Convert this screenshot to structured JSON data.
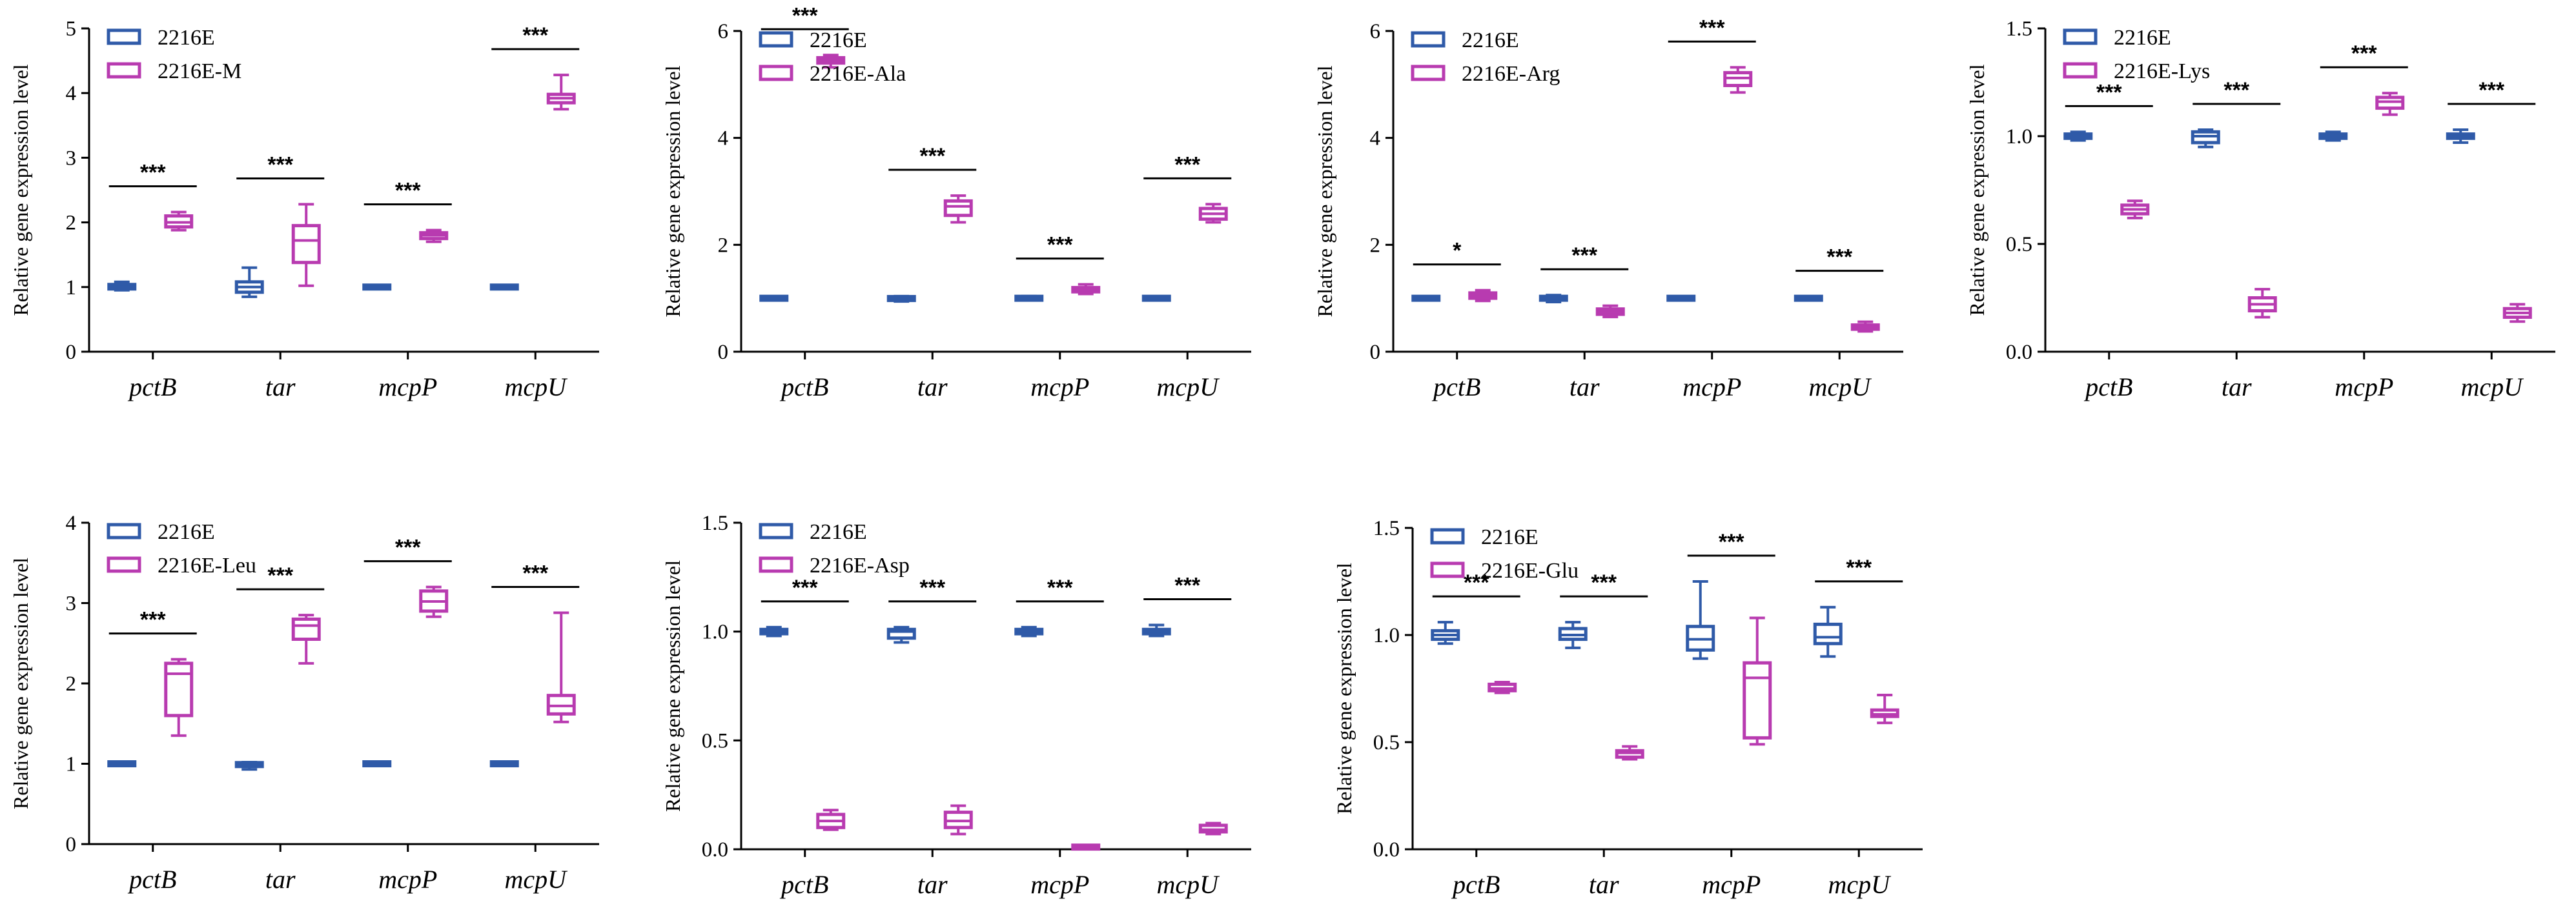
{
  "y_axis_label": "Relative gene expression level",
  "categories": [
    "pctB",
    "tar",
    "mcpP",
    "mcpU"
  ],
  "colors": {
    "control": "#2f5aa8",
    "treatment": "#b83bb0"
  },
  "chart_data": [
    {
      "type": "box",
      "title": "",
      "xlabel": "",
      "ylabel": "Relative gene expression level",
      "categories": [
        "pctB",
        "tar",
        "mcpP",
        "mcpU"
      ],
      "ylim": [
        0,
        5
      ],
      "yticks": [
        "0",
        "1",
        "2",
        "3",
        "4",
        "5"
      ],
      "ytick_values": [
        0,
        1,
        2,
        3,
        4,
        5
      ],
      "legend": [
        "2216E",
        "2216E-M"
      ],
      "significance": [
        "***",
        "***",
        "***",
        "***"
      ],
      "series": [
        {
          "name": "2216E",
          "boxes": [
            {
              "min": 0.95,
              "q1": 0.97,
              "median": 1.0,
              "q3": 1.04,
              "max": 1.08
            },
            {
              "min": 0.85,
              "q1": 0.92,
              "median": 1.0,
              "q3": 1.08,
              "max": 1.3
            },
            {
              "min": 0.99,
              "q1": 0.995,
              "median": 1.0,
              "q3": 1.005,
              "max": 1.01
            },
            {
              "min": 0.99,
              "q1": 0.995,
              "median": 1.0,
              "q3": 1.005,
              "max": 1.01
            }
          ]
        },
        {
          "name": "2216E-M",
          "boxes": [
            {
              "min": 1.88,
              "q1": 1.93,
              "median": 2.0,
              "q3": 2.1,
              "max": 2.16
            },
            {
              "min": 1.02,
              "q1": 1.38,
              "median": 1.72,
              "q3": 1.95,
              "max": 2.28
            },
            {
              "min": 1.7,
              "q1": 1.75,
              "median": 1.8,
              "q3": 1.84,
              "max": 1.88
            },
            {
              "min": 3.75,
              "q1": 3.85,
              "median": 3.92,
              "q3": 3.98,
              "max": 4.28
            }
          ]
        }
      ]
    },
    {
      "type": "box",
      "title": "",
      "xlabel": "",
      "ylabel": "Relative gene expression level",
      "categories": [
        "pctB",
        "tar",
        "mcpP",
        "mcpU"
      ],
      "ylim": [
        0,
        6
      ],
      "yticks": [
        "0",
        "2",
        "4",
        "6"
      ],
      "ytick_values": [
        0,
        2,
        4,
        6
      ],
      "legend": [
        "2216E",
        "2216E-Ala"
      ],
      "significance": [
        "***",
        "***",
        "***",
        "***"
      ],
      "series": [
        {
          "name": "2216E",
          "boxes": [
            {
              "min": 0.99,
              "q1": 0.995,
              "median": 1.0,
              "q3": 1.005,
              "max": 1.01
            },
            {
              "min": 0.94,
              "q1": 0.97,
              "median": 1.0,
              "q3": 1.02,
              "max": 1.04
            },
            {
              "min": 0.96,
              "q1": 0.98,
              "median": 1.0,
              "q3": 1.02,
              "max": 1.04
            },
            {
              "min": 0.99,
              "q1": 0.995,
              "median": 1.0,
              "q3": 1.005,
              "max": 1.01
            }
          ]
        },
        {
          "name": "2216E-Ala",
          "boxes": [
            {
              "min": 5.32,
              "q1": 5.4,
              "median": 5.45,
              "q3": 5.5,
              "max": 5.55
            },
            {
              "min": 2.42,
              "q1": 2.55,
              "median": 2.72,
              "q3": 2.82,
              "max": 2.92
            },
            {
              "min": 1.08,
              "q1": 1.12,
              "median": 1.15,
              "q3": 1.2,
              "max": 1.26
            },
            {
              "min": 2.42,
              "q1": 2.48,
              "median": 2.58,
              "q3": 2.68,
              "max": 2.76
            }
          ]
        }
      ]
    },
    {
      "type": "box",
      "title": "",
      "xlabel": "",
      "ylabel": "Relative gene expression level",
      "categories": [
        "pctB",
        "tar",
        "mcpP",
        "mcpU"
      ],
      "ylim": [
        0,
        6
      ],
      "yticks": [
        "0",
        "2",
        "4",
        "6"
      ],
      "ytick_values": [
        0,
        2,
        4,
        6
      ],
      "legend": [
        "2216E",
        "2216E-Arg"
      ],
      "significance": [
        "*",
        "***",
        "***",
        "***"
      ],
      "series": [
        {
          "name": "2216E",
          "boxes": [
            {
              "min": 0.99,
              "q1": 0.995,
              "median": 1.0,
              "q3": 1.005,
              "max": 1.01
            },
            {
              "min": 0.93,
              "q1": 0.97,
              "median": 1.0,
              "q3": 1.03,
              "max": 1.06
            },
            {
              "min": 0.99,
              "q1": 0.995,
              "median": 1.0,
              "q3": 1.005,
              "max": 1.01
            },
            {
              "min": 0.97,
              "q1": 0.985,
              "median": 1.0,
              "q3": 1.015,
              "max": 1.03
            }
          ]
        },
        {
          "name": "2216E-Arg",
          "boxes": [
            {
              "min": 0.95,
              "q1": 1.0,
              "median": 1.05,
              "q3": 1.1,
              "max": 1.15
            },
            {
              "min": 0.65,
              "q1": 0.7,
              "median": 0.75,
              "q3": 0.8,
              "max": 0.86
            },
            {
              "min": 4.85,
              "q1": 4.98,
              "median": 5.12,
              "q3": 5.22,
              "max": 5.32
            },
            {
              "min": 0.38,
              "q1": 0.42,
              "median": 0.46,
              "q3": 0.5,
              "max": 0.56
            }
          ]
        }
      ]
    },
    {
      "type": "box",
      "title": "",
      "xlabel": "",
      "ylabel": "Relative gene expression level",
      "categories": [
        "pctB",
        "tar",
        "mcpP",
        "mcpU"
      ],
      "ylim": [
        0,
        1.5
      ],
      "yticks": [
        "0.0",
        "0.5",
        "1.0",
        "1.5"
      ],
      "ytick_values": [
        0,
        0.5,
        1.0,
        1.5
      ],
      "legend": [
        "2216E",
        "2216E-Lys"
      ],
      "significance": [
        "***",
        "***",
        "***",
        "***"
      ],
      "series": [
        {
          "name": "2216E",
          "boxes": [
            {
              "min": 0.98,
              "q1": 0.99,
              "median": 1.0,
              "q3": 1.01,
              "max": 1.02
            },
            {
              "min": 0.95,
              "q1": 0.97,
              "median": 1.0,
              "q3": 1.02,
              "max": 1.03
            },
            {
              "min": 0.98,
              "q1": 0.99,
              "median": 1.0,
              "q3": 1.01,
              "max": 1.02
            },
            {
              "min": 0.97,
              "q1": 0.99,
              "median": 1.0,
              "q3": 1.01,
              "max": 1.03
            }
          ]
        },
        {
          "name": "2216E-Lys",
          "boxes": [
            {
              "min": 0.62,
              "q1": 0.64,
              "median": 0.66,
              "q3": 0.68,
              "max": 0.7
            },
            {
              "min": 0.16,
              "q1": 0.19,
              "median": 0.22,
              "q3": 0.25,
              "max": 0.29
            },
            {
              "min": 1.1,
              "q1": 1.13,
              "median": 1.16,
              "q3": 1.18,
              "max": 1.2
            },
            {
              "min": 0.14,
              "q1": 0.16,
              "median": 0.18,
              "q3": 0.2,
              "max": 0.22
            }
          ]
        }
      ]
    },
    {
      "type": "box",
      "title": "",
      "xlabel": "",
      "ylabel": "Relative gene expression level",
      "categories": [
        "pctB",
        "tar",
        "mcpP",
        "mcpU"
      ],
      "ylim": [
        0,
        4
      ],
      "yticks": [
        "0",
        "1",
        "2",
        "3",
        "4"
      ],
      "ytick_values": [
        0,
        1,
        2,
        3,
        4
      ],
      "legend": [
        "2216E",
        "2216E-Leu"
      ],
      "significance": [
        "***",
        "***",
        "***",
        "***"
      ],
      "series": [
        {
          "name": "2216E",
          "boxes": [
            {
              "min": 0.99,
              "q1": 0.995,
              "median": 1.0,
              "q3": 1.005,
              "max": 1.01
            },
            {
              "min": 0.93,
              "q1": 0.97,
              "median": 1.0,
              "q3": 1.01,
              "max": 1.02
            },
            {
              "min": 0.99,
              "q1": 0.995,
              "median": 1.0,
              "q3": 1.005,
              "max": 1.01
            },
            {
              "min": 0.99,
              "q1": 0.995,
              "median": 1.0,
              "q3": 1.005,
              "max": 1.01
            }
          ]
        },
        {
          "name": "2216E-Leu",
          "boxes": [
            {
              "min": 1.35,
              "q1": 1.6,
              "median": 2.12,
              "q3": 2.25,
              "max": 2.3
            },
            {
              "min": 2.25,
              "q1": 2.55,
              "median": 2.72,
              "q3": 2.8,
              "max": 2.85
            },
            {
              "min": 2.83,
              "q1": 2.9,
              "median": 3.02,
              "q3": 3.15,
              "max": 3.2
            },
            {
              "min": 1.52,
              "q1": 1.62,
              "median": 1.72,
              "q3": 1.85,
              "max": 2.88
            }
          ]
        }
      ]
    },
    {
      "type": "box",
      "title": "",
      "xlabel": "",
      "ylabel": "Relative gene expression level",
      "categories": [
        "pctB",
        "tar",
        "mcpP",
        "mcpU"
      ],
      "ylim": [
        0,
        1.5
      ],
      "yticks": [
        "0.0",
        "0.5",
        "1.0",
        "1.5"
      ],
      "ytick_values": [
        0,
        0.5,
        1.0,
        1.5
      ],
      "legend": [
        "2216E",
        "2216E-Asp"
      ],
      "significance": [
        "***",
        "***",
        "***",
        "***"
      ],
      "series": [
        {
          "name": "2216E",
          "boxes": [
            {
              "min": 0.98,
              "q1": 0.99,
              "median": 1.0,
              "q3": 1.01,
              "max": 1.02
            },
            {
              "min": 0.95,
              "q1": 0.97,
              "median": 1.0,
              "q3": 1.01,
              "max": 1.02
            },
            {
              "min": 0.98,
              "q1": 0.99,
              "median": 1.0,
              "q3": 1.01,
              "max": 1.02
            },
            {
              "min": 0.98,
              "q1": 0.99,
              "median": 1.0,
              "q3": 1.01,
              "max": 1.03
            }
          ]
        },
        {
          "name": "2216E-Asp",
          "boxes": [
            {
              "min": 0.09,
              "q1": 0.1,
              "median": 0.13,
              "q3": 0.16,
              "max": 0.18
            },
            {
              "min": 0.07,
              "q1": 0.1,
              "median": 0.13,
              "q3": 0.17,
              "max": 0.2
            },
            {
              "min": 0.005,
              "q1": 0.008,
              "median": 0.01,
              "q3": 0.012,
              "max": 0.015
            },
            {
              "min": 0.07,
              "q1": 0.08,
              "median": 0.09,
              "q3": 0.11,
              "max": 0.12
            }
          ]
        }
      ]
    },
    {
      "type": "box",
      "title": "",
      "xlabel": "",
      "ylabel": "Relative gene expression level",
      "categories": [
        "pctB",
        "tar",
        "mcpP",
        "mcpU"
      ],
      "ylim": [
        0,
        1.5
      ],
      "yticks": [
        "0.0",
        "0.5",
        "1.0",
        "1.5"
      ],
      "ytick_values": [
        0,
        0.5,
        1.0,
        1.5
      ],
      "legend": [
        "2216E",
        "2216E-Glu"
      ],
      "significance": [
        "***",
        "***",
        "***",
        "***"
      ],
      "series": [
        {
          "name": "2216E",
          "boxes": [
            {
              "min": 0.96,
              "q1": 0.98,
              "median": 1.0,
              "q3": 1.02,
              "max": 1.06
            },
            {
              "min": 0.94,
              "q1": 0.98,
              "median": 1.0,
              "q3": 1.03,
              "max": 1.06
            },
            {
              "min": 0.89,
              "q1": 0.93,
              "median": 0.98,
              "q3": 1.04,
              "max": 1.25
            },
            {
              "min": 0.9,
              "q1": 0.96,
              "median": 0.99,
              "q3": 1.05,
              "max": 1.13
            }
          ]
        },
        {
          "name": "2216E-Glu",
          "boxes": [
            {
              "min": 0.73,
              "q1": 0.74,
              "median": 0.75,
              "q3": 0.77,
              "max": 0.78
            },
            {
              "min": 0.42,
              "q1": 0.43,
              "median": 0.45,
              "q3": 0.46,
              "max": 0.48
            },
            {
              "min": 0.49,
              "q1": 0.52,
              "median": 0.8,
              "q3": 0.87,
              "max": 1.08
            },
            {
              "min": 0.59,
              "q1": 0.62,
              "median": 0.63,
              "q3": 0.65,
              "max": 0.72
            }
          ]
        }
      ]
    }
  ]
}
